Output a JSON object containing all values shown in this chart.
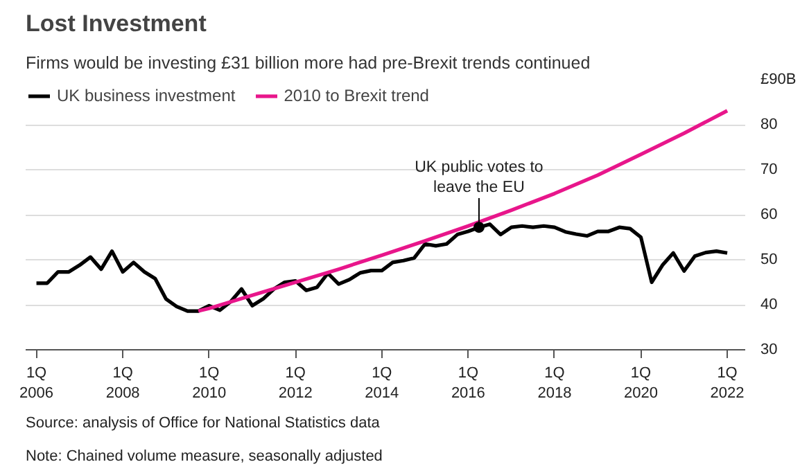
{
  "chart_data": {
    "type": "line",
    "title": "Lost Investment",
    "subtitle": "Firms would be investing £31 billion more had pre-Brexit trends continued",
    "xlim": [
      "2005-10",
      "2022-06"
    ],
    "xticks": [
      {
        "value": "2006-01",
        "label": "1Q\n2006"
      },
      {
        "value": "2008-01",
        "label": "1Q\n2008"
      },
      {
        "value": "2010-01",
        "label": "1Q\n2010"
      },
      {
        "value": "2012-01",
        "label": "1Q\n2012"
      },
      {
        "value": "2014-01",
        "label": "1Q\n2014"
      },
      {
        "value": "2016-01",
        "label": "1Q\n2016"
      },
      {
        "value": "2018-01",
        "label": "1Q\n2018"
      },
      {
        "value": "2020-01",
        "label": "1Q\n2020"
      },
      {
        "value": "2022-01",
        "label": "1Q\n2022"
      }
    ],
    "ylim": [
      30,
      90
    ],
    "yticks": [
      30,
      40,
      50,
      60,
      70,
      80,
      {
        "value": 90,
        "label": "£90B"
      }
    ],
    "series": [
      {
        "name": "UK business investment",
        "color": "#000000",
        "x": [
          "2006-01",
          "2006-04",
          "2006-07",
          "2006-10",
          "2007-01",
          "2007-04",
          "2007-07",
          "2007-10",
          "2008-01",
          "2008-04",
          "2008-07",
          "2008-10",
          "2009-01",
          "2009-04",
          "2009-07",
          "2009-10",
          "2010-01",
          "2010-04",
          "2010-07",
          "2010-10",
          "2011-01",
          "2011-04",
          "2011-07",
          "2011-10",
          "2012-01",
          "2012-04",
          "2012-07",
          "2012-10",
          "2013-01",
          "2013-04",
          "2013-07",
          "2013-10",
          "2014-01",
          "2014-04",
          "2014-07",
          "2014-10",
          "2015-01",
          "2015-04",
          "2015-07",
          "2015-10",
          "2016-01",
          "2016-04",
          "2016-07",
          "2016-10",
          "2017-01",
          "2017-04",
          "2017-07",
          "2017-10",
          "2018-01",
          "2018-04",
          "2018-07",
          "2018-10",
          "2019-01",
          "2019-04",
          "2019-07",
          "2019-10",
          "2020-01",
          "2020-04",
          "2020-07",
          "2020-10",
          "2021-01",
          "2021-04",
          "2021-07",
          "2021-10",
          "2022-01"
        ],
        "values": [
          44.8,
          44.8,
          47.3,
          47.3,
          48.8,
          50.6,
          47.9,
          51.9,
          47.3,
          49.4,
          47.3,
          45.8,
          41.3,
          39.6,
          38.6,
          38.6,
          39.8,
          38.8,
          40.7,
          43.5,
          39.8,
          41.3,
          43.5,
          45.0,
          45.3,
          43.2,
          43.9,
          47.0,
          44.6,
          45.6,
          47.1,
          47.6,
          47.6,
          49.4,
          49.8,
          50.4,
          53.5,
          53.1,
          53.5,
          55.6,
          56.3,
          57.2,
          57.9,
          55.6,
          57.2,
          57.5,
          57.2,
          57.5,
          57.2,
          56.2,
          55.7,
          55.3,
          56.3,
          56.3,
          57.2,
          56.9,
          55.0,
          45.0,
          48.8,
          51.5,
          47.5,
          50.8,
          51.6,
          51.9,
          51.5
        ]
      },
      {
        "name": "2010 to Brexit trend",
        "color": "#e8168b",
        "x": [
          "2009-10",
          "2010-01",
          "2011-01",
          "2012-01",
          "2013-01",
          "2014-01",
          "2015-01",
          "2016-01",
          "2017-01",
          "2018-01",
          "2019-01",
          "2020-01",
          "2021-01",
          "2022-01"
        ],
        "values": [
          38.6,
          39.2,
          42.1,
          45.0,
          47.9,
          51.0,
          54.2,
          57.5,
          61.0,
          64.7,
          68.8,
          73.4,
          78.1,
          83.1
        ]
      }
    ],
    "annotations": [
      {
        "text": "UK public votes to\nleave the EU",
        "x": "2016-04",
        "y": 57.2
      },
      "Source: analysis of Office for National Statistics data",
      "Note: Chained volume measure, seasonally adjusted"
    ],
    "grid": "y",
    "legend": "top left",
    "marker": "none",
    "line_style": "solid"
  }
}
